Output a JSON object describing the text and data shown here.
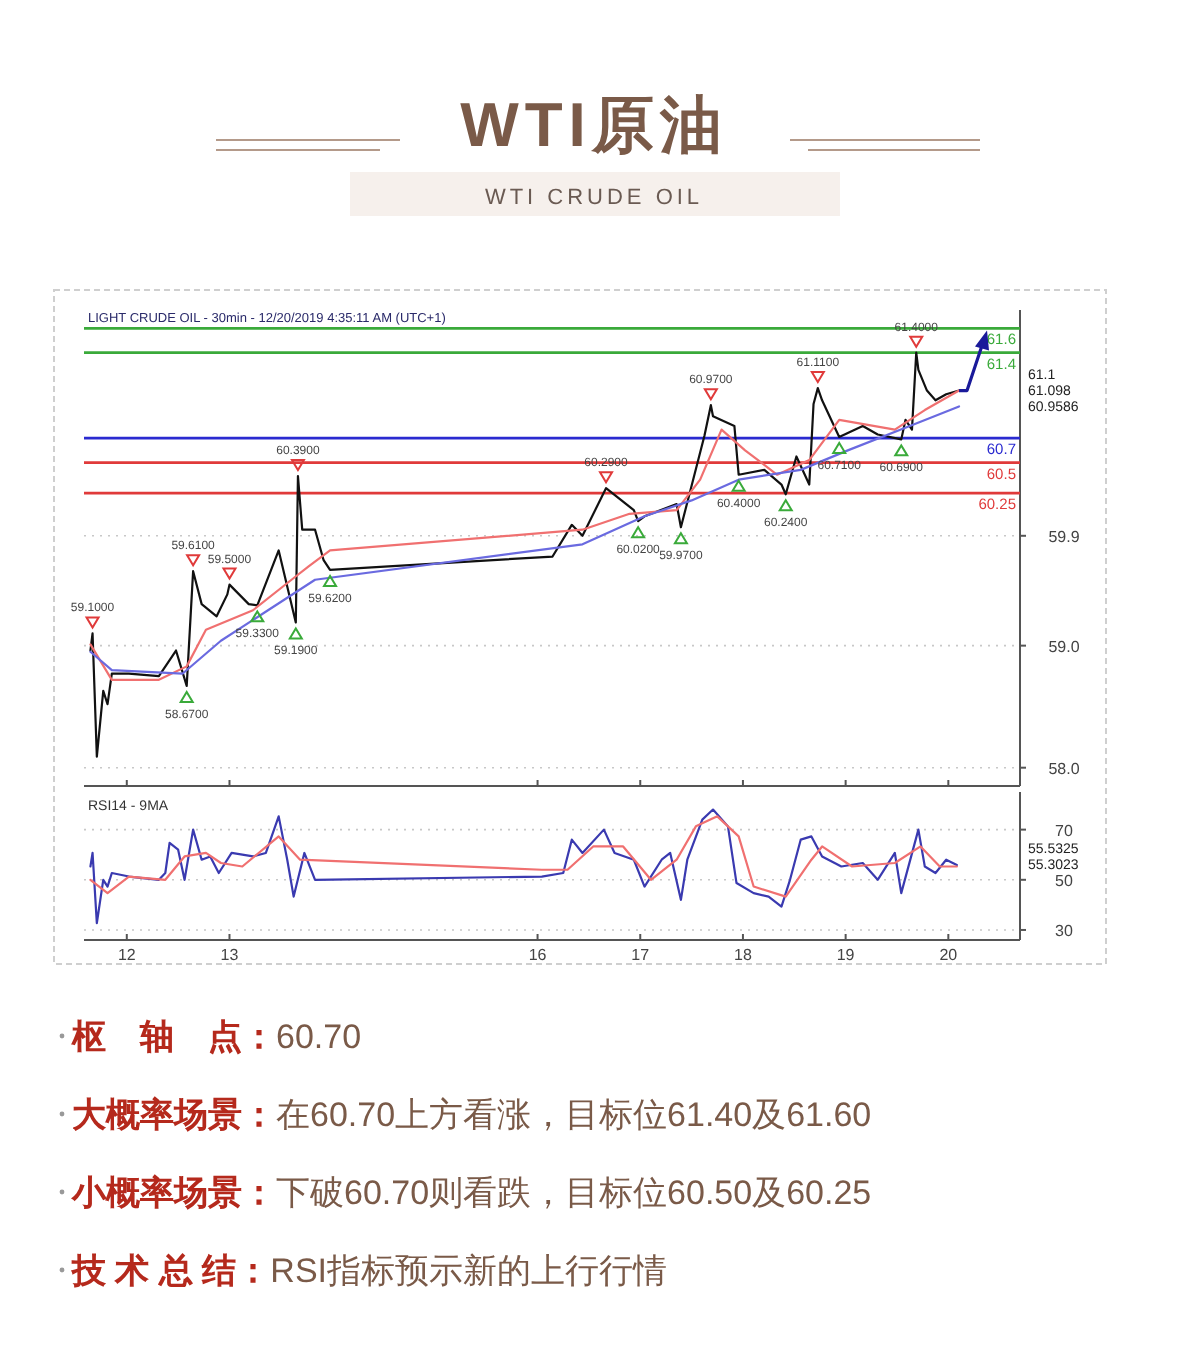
{
  "chart_data": [
    {
      "type": "line",
      "title": "WTI原油",
      "subtitle": "WTI CRUDE OIL",
      "xlim": [
        "2019-12-11T14:00",
        "2019-12-20T16:45"
      ],
      "xticks": [
        {
          "value": "2019-12-12",
          "label": null
        },
        {
          "value": "2019-12-13",
          "label": null
        },
        {
          "value": "2019-12-16",
          "label": null
        },
        {
          "value": "2019-12-17",
          "label": null
        },
        {
          "value": "2019-12-18",
          "label": null
        },
        {
          "value": "2019-12-19",
          "label": null
        },
        {
          "value": "2019-12-20",
          "label": null
        }
      ],
      "ylim": [
        57.85,
        61.75
      ],
      "yticks": [
        {
          "value": 58,
          "label": "58.0"
        },
        {
          "value": 59,
          "label": "59.0"
        },
        59.9
      ],
      "grid": "y",
      "tick_labels": "y",
      "series": [
        {
          "type": "line",
          "color": "#111111",
          "x": [
            "2019-12-11T15:30",
            "2019-12-11T16:00",
            "2019-12-11T17:00",
            "2019-12-11T18:30",
            "2019-12-11T19:30",
            "2019-12-11T20:30",
            "2019-12-12T00:30",
            "2019-12-12T07:30",
            "2019-12-12T11:30",
            "2019-12-12T14:00",
            "2019-12-12T15:30",
            "2019-12-12T17:30",
            "2019-12-12T21:00",
            "2019-12-12T23:30",
            "2019-12-13T00:00",
            "2019-12-13T04:30",
            "2019-12-13T06:30",
            "2019-12-13T11:30",
            "2019-12-13T15:30",
            "2019-12-13T16:00",
            "2019-12-13T17:00",
            "2019-12-13T20:00",
            "2019-12-13T22:00",
            "2019-12-13T23:30",
            "2019-12-16T03:30",
            "2019-12-16T08:00",
            "2019-12-16T10:30",
            "2019-12-16T16:00",
            "2019-12-16T22:30",
            "2019-12-16T23:30",
            "2019-12-17T01:00",
            "2019-12-17T08:30",
            "2019-12-17T09:30",
            "2019-12-17T12:00",
            "2019-12-17T15:00",
            "2019-12-17T16:30",
            "2019-12-17T17:00",
            "2019-12-17T22:00",
            "2019-12-17T23:00",
            "2019-12-18T05:00",
            "2019-12-18T09:00",
            "2019-12-18T10:00",
            "2019-12-18T12:30",
            "2019-12-18T15:30",
            "2019-12-18T16:30",
            "2019-12-18T17:30",
            "2019-12-18T18:30",
            "2019-12-18T22:30",
            "2019-12-19T04:00",
            "2019-12-19T07:30",
            "2019-12-19T13:00",
            "2019-12-19T14:00",
            "2019-12-19T15:30",
            "2019-12-19T16:30",
            "2019-12-19T17:00",
            "2019-12-19T19:00",
            "2019-12-19T21:00",
            "2019-12-19T23:30",
            "2019-12-20T02:30"
          ],
          "values": [
            58.96,
            59.1,
            58.09,
            58.63,
            58.52,
            58.77,
            58.77,
            58.75,
            58.96,
            58.67,
            59.61,
            59.34,
            59.24,
            59.42,
            59.5,
            59.34,
            59.33,
            59.78,
            59.19,
            60.39,
            59.95,
            59.95,
            59.7,
            59.62,
            59.73,
            59.99,
            59.9,
            60.29,
            60.11,
            60.02,
            60.06,
            60.16,
            59.97,
            60.31,
            60.72,
            60.97,
            60.88,
            60.8,
            60.4,
            60.44,
            60.32,
            60.24,
            60.55,
            60.32,
            60.98,
            61.11,
            61.01,
            60.71,
            60.8,
            60.73,
            60.69,
            60.85,
            60.77,
            61.4,
            61.26,
            61.09,
            61.01,
            61.06,
            61.09
          ]
        },
        {
          "type": "line",
          "color": "#f07070",
          "x": [
            "2019-12-11T15:30",
            "2019-12-11T20:30",
            "2019-12-12T07:30",
            "2019-12-12T14:00",
            "2019-12-12T18:30",
            "2019-12-13T05:30",
            "2019-12-13T14:30",
            "2019-12-13T18:30",
            "2019-12-13T23:30",
            "2019-12-16T10:30",
            "2019-12-16T21:30",
            "2019-12-17T08:30",
            "2019-12-17T14:00",
            "2019-12-17T19:00",
            "2019-12-18T00:30",
            "2019-12-18T08:00",
            "2019-12-18T15:30",
            "2019-12-18T22:30",
            "2019-12-19T11:30",
            "2019-12-19T18:30",
            "2019-12-20T02:30"
          ],
          "values": [
            59.01,
            58.72,
            58.72,
            58.83,
            59.13,
            59.29,
            59.54,
            59.65,
            59.78,
            59.95,
            60.08,
            60.11,
            60.36,
            60.77,
            60.6,
            60.4,
            60.52,
            60.85,
            60.77,
            60.93,
            61.09
          ]
        },
        {
          "type": "line",
          "color": "#6a6ae0",
          "x": [
            "2019-12-11T15:30",
            "2019-12-11T20:30",
            "2019-12-12T13:00",
            "2019-12-12T22:00",
            "2019-12-13T09:00",
            "2019-12-13T20:00",
            "2019-12-16T10:30",
            "2019-12-17T01:00",
            "2019-12-17T12:00",
            "2019-12-17T23:00",
            "2019-12-18T13:30",
            "2019-12-19T00:30",
            "2019-12-19T15:00",
            "2019-12-20T02:30"
          ],
          "values": [
            58.95,
            58.8,
            58.77,
            59.04,
            59.29,
            59.54,
            59.83,
            60.06,
            60.19,
            60.36,
            60.44,
            60.6,
            60.8,
            60.96
          ]
        }
      ],
      "ref_lines": [
        {
          "axis": "y",
          "value": 61.6,
          "label": "61.6",
          "color": "#3aaa3a"
        },
        {
          "axis": "y",
          "value": 61.4,
          "label": "61.4",
          "color": "#3aaa3a"
        },
        {
          "axis": "y",
          "value": 60.7,
          "label": "60.7",
          "color": "#2a2ad0"
        },
        {
          "axis": "y",
          "value": 60.5,
          "label": "60.5",
          "color": "#e03a3a"
        },
        {
          "axis": "y",
          "value": 60.25,
          "label": "60.25",
          "color": "#e03a3a"
        }
      ],
      "annotations": [
        "LIGHT CRUDE OIL - 30min - 12/20/2019 4:35:11 AM (UTC+1)",
        "61.1",
        "61.098",
        "60.9586",
        {
          "text": "59.1000",
          "x": "2019-12-11T16:00",
          "y": 59.1
        },
        {
          "text": "58.6700",
          "x": "2019-12-12T14:00",
          "y": 58.67
        },
        {
          "text": "59.6100",
          "x": "2019-12-12T15:30",
          "y": 59.61
        },
        {
          "text": "59.5000",
          "x": "2019-12-13T00:00",
          "y": 59.5
        },
        {
          "text": "59.3300",
          "x": "2019-12-13T06:30",
          "y": 59.33
        },
        {
          "text": "59.1900",
          "x": "2019-12-13T15:30",
          "y": 59.19
        },
        {
          "text": "60.3900",
          "x": "2019-12-13T16:00",
          "y": 60.39
        },
        {
          "text": "59.6200",
          "x": "2019-12-13T23:30",
          "y": 59.62
        },
        {
          "text": "60.2900",
          "x": "2019-12-16T16:00",
          "y": 60.29
        },
        {
          "text": "60.0200",
          "x": "2019-12-16T23:30",
          "y": 60.02
        },
        {
          "text": "59.9700",
          "x": "2019-12-17T09:30",
          "y": 59.97
        },
        {
          "text": "60.9700",
          "x": "2019-12-17T16:30",
          "y": 60.97
        },
        {
          "text": "60.4000",
          "x": "2019-12-17T23:00",
          "y": 60.4
        },
        {
          "text": "60.2400",
          "x": "2019-12-18T10:00",
          "y": 60.24
        },
        {
          "text": "61.1100",
          "x": "2019-12-18T17:30",
          "y": 61.11
        },
        {
          "text": "60.7100",
          "x": "2019-12-18T22:30",
          "y": 60.71
        },
        {
          "text": "60.6900",
          "x": "2019-12-19T13:00",
          "y": 60.69
        },
        {
          "text": "61.4000",
          "x": "2019-12-19T16:30",
          "y": 61.4
        }
      ]
    },
    {
      "type": "line",
      "title": "RSI14 - 9MA",
      "xlim": [
        "2019-12-11T14:00",
        "2019-12-20T16:45"
      ],
      "xticks": [
        {
          "value": "2019-12-12",
          "label": "12"
        },
        {
          "value": "2019-12-13",
          "label": "13"
        },
        {
          "value": "2019-12-16",
          "label": "16"
        },
        {
          "value": "2019-12-17",
          "label": "17"
        },
        {
          "value": "2019-12-18",
          "label": "18"
        },
        {
          "value": "2019-12-19",
          "label": "19"
        },
        {
          "value": "2019-12-20",
          "label": "20"
        }
      ],
      "ylim": [
        26,
        85
      ],
      "yticks": [
        30,
        50,
        70
      ],
      "grid": "y",
      "series": [
        {
          "type": "line",
          "color": "#3a3ab0",
          "x": [
            "2019-12-11T15:30",
            "2019-12-11T16:00",
            "2019-12-11T17:00",
            "2019-12-11T18:30",
            "2019-12-11T19:30",
            "2019-12-11T20:30",
            "2019-12-12T00:30",
            "2019-12-12T07:30",
            "2019-12-12T09:00",
            "2019-12-12T10:00",
            "2019-12-12T12:00",
            "2019-12-12T13:30",
            "2019-12-12T15:30",
            "2019-12-12T17:30",
            "2019-12-12T19:30",
            "2019-12-12T21:30",
            "2019-12-13T00:30",
            "2019-12-13T05:30",
            "2019-12-13T08:30",
            "2019-12-13T11:30",
            "2019-12-13T13:30",
            "2019-12-13T15:00",
            "2019-12-13T17:30",
            "2019-12-13T20:00",
            "2019-12-16T01:00",
            "2019-12-16T06:00",
            "2019-12-16T08:00",
            "2019-12-16T10:30",
            "2019-12-16T15:30",
            "2019-12-16T18:00",
            "2019-12-16T22:30",
            "2019-12-17T01:00",
            "2019-12-17T05:00",
            "2019-12-17T07:00",
            "2019-12-17T09:30",
            "2019-12-17T11:00",
            "2019-12-17T14:30",
            "2019-12-17T17:00",
            "2019-12-17T20:30",
            "2019-12-17T22:30",
            "2019-12-18T02:30",
            "2019-12-18T06:00",
            "2019-12-18T09:00",
            "2019-12-18T11:00",
            "2019-12-18T13:30",
            "2019-12-18T16:00",
            "2019-12-18T18:30",
            "2019-12-18T23:00",
            "2019-12-19T04:00",
            "2019-12-19T07:30",
            "2019-12-19T11:30",
            "2019-12-19T13:00",
            "2019-12-19T17:00",
            "2019-12-19T18:30",
            "2019-12-19T21:00",
            "2019-12-19T23:30",
            "2019-12-20T02:00"
          ],
          "values": [
            55.3,
            60.7,
            32.7,
            50,
            47.3,
            52.7,
            51.3,
            50,
            52.7,
            64.7,
            62,
            50,
            70,
            58,
            59.3,
            52.7,
            60.7,
            59.3,
            60.7,
            75.3,
            58,
            43.3,
            60.7,
            50,
            51.3,
            52.7,
            66,
            60.7,
            70,
            60.7,
            58,
            47.3,
            58,
            60.7,
            42,
            58,
            74,
            78,
            71.3,
            48.7,
            44.7,
            43.3,
            39.3,
            50,
            66,
            67.3,
            59.3,
            55.3,
            56.7,
            50,
            60.7,
            44.7,
            70,
            55.3,
            52.7,
            58,
            55.9
          ]
        },
        {
          "type": "line",
          "color": "#f07070",
          "x": [
            "2019-12-11T15:30",
            "2019-12-11T19:30",
            "2019-12-12T00:30",
            "2019-12-12T09:00",
            "2019-12-12T13:30",
            "2019-12-12T18:30",
            "2019-12-12T22:00",
            "2019-12-13T03:00",
            "2019-12-13T11:30",
            "2019-12-13T16:30",
            "2019-12-16T01:00",
            "2019-12-16T07:00",
            "2019-12-16T13:00",
            "2019-12-16T20:00",
            "2019-12-17T02:30",
            "2019-12-17T08:30",
            "2019-12-17T13:00",
            "2019-12-17T18:00",
            "2019-12-17T23:00",
            "2019-12-18T02:30",
            "2019-12-18T10:00",
            "2019-12-18T16:00",
            "2019-12-18T18:30",
            "2019-12-19T01:30",
            "2019-12-19T11:30",
            "2019-12-19T17:30",
            "2019-12-19T22:00",
            "2019-12-20T02:00"
          ],
          "values": [
            50,
            44.7,
            51.3,
            50,
            59.3,
            60.7,
            56.7,
            55.3,
            67.3,
            58,
            54,
            54,
            63.3,
            63.3,
            50,
            58,
            71.3,
            75.3,
            67.3,
            47.3,
            43.3,
            58,
            63.3,
            55.3,
            56.7,
            63.3,
            55.3,
            55.3
          ]
        }
      ],
      "annotations": [
        "55.5325",
        "55.3023"
      ]
    },
    {
      "type": "other",
      "annotations": [
        "**枢　轴　点：**60.70",
        "**大概率场景：**在60.70上方看涨，目标位61.40及61.60",
        "**小概率场景：**下破60.70则看跌，目标位60.50及60.25",
        "**技 术 总 结：**RSI指标预示新的上行行情"
      ]
    }
  ]
}
